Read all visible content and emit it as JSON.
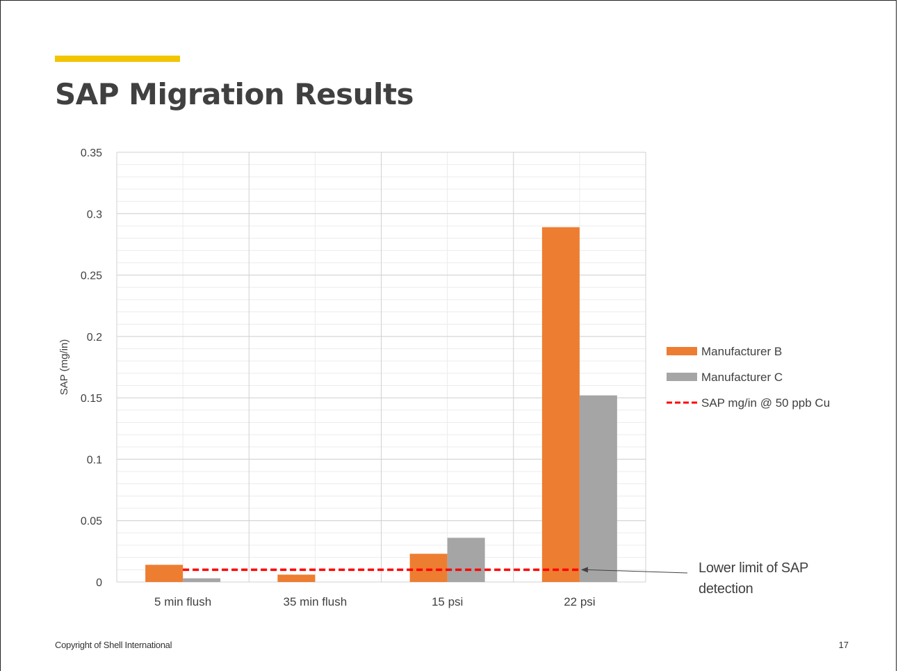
{
  "slide": {
    "title": "SAP Migration Results",
    "footer": "Copyright of Shell International",
    "page_number": "17"
  },
  "colors": {
    "accent": "#f2c500",
    "manufacturer_b": "#ed7d31",
    "manufacturer_c": "#a5a5a5",
    "limit_line": "#ff0000"
  },
  "chart_data": {
    "type": "bar",
    "categories": [
      "5 min flush",
      "35 min flush",
      "15 psi",
      "22 psi"
    ],
    "series": [
      {
        "name": "Manufacturer B",
        "values": [
          0.014,
          0.006,
          0.023,
          0.289
        ]
      },
      {
        "name": "Manufacturer C",
        "values": [
          0.003,
          0,
          0.036,
          0.152
        ]
      }
    ],
    "reference_line": {
      "name": "SAP mg/in @ 50 ppb Cu",
      "value": 0.01,
      "style": "dashed"
    },
    "annotation": {
      "lines": [
        "Lower limit of SAP",
        "detection"
      ]
    },
    "ylabel": "SAP (mg/in)",
    "xlabel": "",
    "ylim": [
      0,
      0.35
    ],
    "yticks": [
      "0",
      "0.05",
      "0.1",
      "0.15",
      "0.2",
      "0.25",
      "0.3",
      "0.35"
    ],
    "grid": true,
    "legend": "right"
  }
}
